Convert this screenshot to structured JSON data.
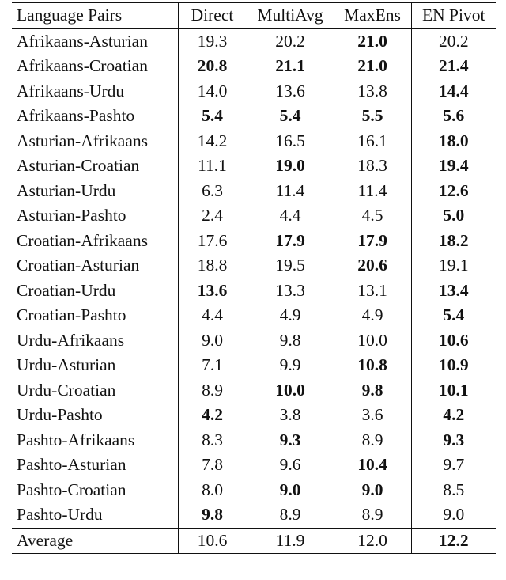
{
  "table": {
    "headers": [
      "Language Pairs",
      "Direct",
      "MultiAvg",
      "MaxEns",
      "EN Pivot"
    ],
    "rows": [
      {
        "pair": "Afrikaans-Asturian",
        "direct": "19.3",
        "multiavg": "20.2",
        "maxens": "21.0",
        "pivot": "20.2",
        "bold": [
          false,
          false,
          true,
          false
        ]
      },
      {
        "pair": "Afrikaans-Croatian",
        "direct": "20.8",
        "multiavg": "21.1",
        "maxens": "21.0",
        "pivot": "21.4",
        "bold": [
          true,
          true,
          true,
          true
        ]
      },
      {
        "pair": "Afrikaans-Urdu",
        "direct": "14.0",
        "multiavg": "13.6",
        "maxens": "13.8",
        "pivot": "14.4",
        "bold": [
          false,
          false,
          false,
          true
        ]
      },
      {
        "pair": "Afrikaans-Pashto",
        "direct": "5.4",
        "multiavg": "5.4",
        "maxens": "5.5",
        "pivot": "5.6",
        "bold": [
          true,
          true,
          true,
          true
        ]
      },
      {
        "pair": "Asturian-Afrikaans",
        "direct": "14.2",
        "multiavg": "16.5",
        "maxens": "16.1",
        "pivot": "18.0",
        "bold": [
          false,
          false,
          false,
          true
        ]
      },
      {
        "pair": "Asturian-Croatian",
        "direct": "11.1",
        "multiavg": "19.0",
        "maxens": "18.3",
        "pivot": "19.4",
        "bold": [
          false,
          true,
          false,
          true
        ]
      },
      {
        "pair": "Asturian-Urdu",
        "direct": "6.3",
        "multiavg": "11.4",
        "maxens": "11.4",
        "pivot": "12.6",
        "bold": [
          false,
          false,
          false,
          true
        ]
      },
      {
        "pair": "Asturian-Pashto",
        "direct": "2.4",
        "multiavg": "4.4",
        "maxens": "4.5",
        "pivot": "5.0",
        "bold": [
          false,
          false,
          false,
          true
        ]
      },
      {
        "pair": "Croatian-Afrikaans",
        "direct": "17.6",
        "multiavg": "17.9",
        "maxens": "17.9",
        "pivot": "18.2",
        "bold": [
          false,
          true,
          true,
          true
        ]
      },
      {
        "pair": "Croatian-Asturian",
        "direct": "18.8",
        "multiavg": "19.5",
        "maxens": "20.6",
        "pivot": "19.1",
        "bold": [
          false,
          false,
          true,
          false
        ]
      },
      {
        "pair": "Croatian-Urdu",
        "direct": "13.6",
        "multiavg": "13.3",
        "maxens": "13.1",
        "pivot": "13.4",
        "bold": [
          true,
          false,
          false,
          true
        ]
      },
      {
        "pair": "Croatian-Pashto",
        "direct": "4.4",
        "multiavg": "4.9",
        "maxens": "4.9",
        "pivot": "5.4",
        "bold": [
          false,
          false,
          false,
          true
        ]
      },
      {
        "pair": "Urdu-Afrikaans",
        "direct": "9.0",
        "multiavg": "9.8",
        "maxens": "10.0",
        "pivot": "10.6",
        "bold": [
          false,
          false,
          false,
          true
        ]
      },
      {
        "pair": "Urdu-Asturian",
        "direct": "7.1",
        "multiavg": "9.9",
        "maxens": "10.8",
        "pivot": "10.9",
        "bold": [
          false,
          false,
          true,
          true
        ]
      },
      {
        "pair": "Urdu-Croatian",
        "direct": "8.9",
        "multiavg": "10.0",
        "maxens": "9.8",
        "pivot": "10.1",
        "bold": [
          false,
          true,
          true,
          true
        ]
      },
      {
        "pair": "Urdu-Pashto",
        "direct": "4.2",
        "multiavg": "3.8",
        "maxens": "3.6",
        "pivot": "4.2",
        "bold": [
          true,
          false,
          false,
          true
        ]
      },
      {
        "pair": "Pashto-Afrikaans",
        "direct": "8.3",
        "multiavg": "9.3",
        "maxens": "8.9",
        "pivot": "9.3",
        "bold": [
          false,
          true,
          false,
          true
        ]
      },
      {
        "pair": "Pashto-Asturian",
        "direct": "7.8",
        "multiavg": "9.6",
        "maxens": "10.4",
        "pivot": "9.7",
        "bold": [
          false,
          false,
          true,
          false
        ]
      },
      {
        "pair": "Pashto-Croatian",
        "direct": "8.0",
        "multiavg": "9.0",
        "maxens": "9.0",
        "pivot": "8.5",
        "bold": [
          false,
          true,
          true,
          false
        ]
      },
      {
        "pair": "Pashto-Urdu",
        "direct": "9.8",
        "multiavg": "8.9",
        "maxens": "8.9",
        "pivot": "9.0",
        "bold": [
          true,
          false,
          false,
          false
        ]
      }
    ],
    "average": {
      "pair": "Average",
      "direct": "10.6",
      "multiavg": "11.9",
      "maxens": "12.0",
      "pivot": "12.2",
      "bold": [
        false,
        false,
        false,
        true
      ]
    }
  }
}
